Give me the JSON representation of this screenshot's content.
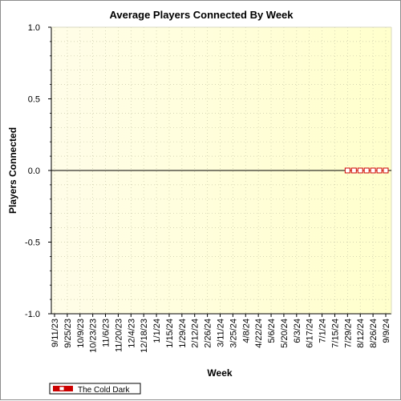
{
  "chart_data": {
    "type": "line",
    "title": "Average Players Connected By Week",
    "xlabel": "Week",
    "ylabel": "Players Connected",
    "ylim": [
      -1.0,
      1.0
    ],
    "yticks": [
      "1.0",
      "0.5",
      "0.0",
      "-0.5",
      "-1.0"
    ],
    "categories": [
      "9/11/23",
      "9/25/23",
      "10/9/23",
      "10/23/23",
      "11/6/23",
      "11/20/23",
      "12/4/23",
      "12/18/23",
      "1/1/24",
      "1/15/24",
      "1/29/24",
      "2/12/24",
      "2/26/24",
      "3/11/24",
      "3/25/24",
      "4/8/24",
      "4/22/24",
      "5/6/24",
      "5/20/24",
      "6/3/24",
      "6/17/24",
      "7/1/24",
      "7/15/24",
      "7/29/24",
      "8/12/24",
      "8/26/24",
      "9/9/24"
    ],
    "series": [
      {
        "name": "The Cold Dark",
        "color": "#cc0000",
        "x": [
          "7/29/24",
          "8/5/24",
          "8/12/24",
          "8/19/24",
          "8/26/24",
          "9/2/24",
          "9/9/24"
        ],
        "values": [
          0,
          0,
          0,
          0,
          0,
          0,
          0
        ]
      }
    ],
    "grid": true,
    "legend": "bottom-left",
    "plot_background": [
      "#fffde8",
      "#ffffcc"
    ]
  }
}
